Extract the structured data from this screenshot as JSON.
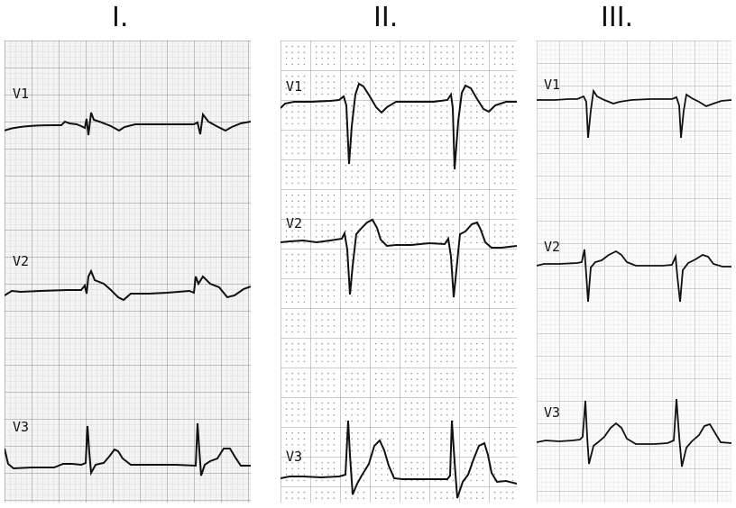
{
  "panels": [
    {
      "title": "I.",
      "leads": [
        "V1",
        "V2",
        "V3"
      ]
    },
    {
      "title": "II.",
      "leads": [
        "V1",
        "V2",
        "V3"
      ]
    },
    {
      "title": "III.",
      "leads": [
        "V1",
        "V2",
        "V3"
      ]
    }
  ],
  "colors": {
    "trace": "#111111",
    "panel_1_minor_grid": "#c8c8c8",
    "panel_1_major_grid": "#8a8a8a",
    "panel_2_grid": "#9a9a9a",
    "panel_3_minor_grid": "#dcdcdc",
    "panel_3_major_grid": "#a8a8a8"
  }
}
